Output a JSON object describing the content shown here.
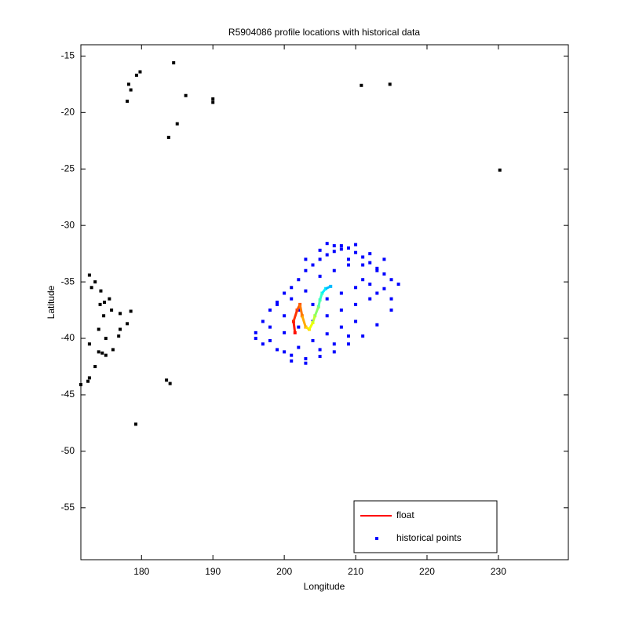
{
  "chart_data": {
    "type": "scatter",
    "title": "R5904086 profile locations with historical data",
    "x_label": "Longitude",
    "y_label": "Latitude",
    "xlim": [
      171.5,
      239.8
    ],
    "ylim": [
      -59.6,
      -14.0
    ],
    "xticks": [
      180,
      190,
      200,
      210,
      220,
      230
    ],
    "yticks": [
      -15,
      -20,
      -25,
      -30,
      -35,
      -40,
      -45,
      -50,
      -55
    ],
    "legend": "lower right",
    "series": [
      {
        "name": "historical points",
        "color": "#0000ff",
        "marker": "dot",
        "x": [
          196,
          197,
          198,
          199,
          200,
          201,
          202,
          203,
          204,
          205,
          206,
          207,
          208,
          209,
          210,
          211,
          212,
          213,
          214,
          215,
          216,
          197,
          199,
          201,
          203,
          205,
          207,
          209,
          211,
          213,
          215,
          196,
          198,
          200,
          202,
          204,
          206,
          208,
          210,
          212,
          214,
          198,
          200,
          202,
          204,
          206,
          208,
          210,
          212,
          200,
          202,
          204,
          206,
          208,
          210,
          201,
          203,
          205,
          207,
          209,
          199,
          201,
          203,
          205,
          207,
          209,
          211,
          213,
          203,
          205,
          207,
          209,
          211,
          213,
          215,
          206,
          208,
          210,
          212,
          214
        ],
        "y": [
          -39.5,
          -38.5,
          -37.5,
          -36.8,
          -36,
          -35.5,
          -34.8,
          -34,
          -33.5,
          -33,
          -32.6,
          -32.3,
          -32.1,
          -32,
          -32.4,
          -32.8,
          -33.3,
          -33.8,
          -34.3,
          -34.8,
          -35.2,
          -40.5,
          -41,
          -41.5,
          -41.8,
          -41.6,
          -41.2,
          -40.5,
          -39.8,
          -38.8,
          -37.5,
          -40,
          -39,
          -38,
          -37.5,
          -37,
          -36.5,
          -36,
          -35.5,
          -35.2,
          -35.6,
          -40.2,
          -39.5,
          -39,
          -38.5,
          -38,
          -37.5,
          -37,
          -36.5,
          -41.2,
          -40.8,
          -40.2,
          -39.6,
          -39,
          -38.5,
          -42,
          -42.2,
          -41,
          -40.5,
          -39.8,
          -37,
          -36.5,
          -35.8,
          -34.5,
          -34,
          -33.5,
          -33.5,
          -34,
          -33,
          -32.2,
          -31.8,
          -33,
          -34.8,
          -36,
          -36.5,
          -31.6,
          -31.8,
          -31.7,
          -32.5,
          -33
        ],
        "value_note": null
      },
      {
        "color": "#000000",
        "marker": "dot",
        "x": [
          172.7,
          173.5,
          174.3,
          174.8,
          175.5,
          175.8,
          177,
          178.5,
          178,
          177,
          176.8,
          176,
          175,
          174.5,
          175,
          174,
          174.7,
          174.2,
          173,
          172.7,
          174,
          173.5,
          172.7,
          172.5,
          171.5,
          178.5,
          178.2,
          179.3,
          179.8,
          178.0,
          184.5,
          186.2,
          185,
          183.8,
          190,
          190,
          210.8,
          214.8,
          230.2,
          183.5,
          184,
          179.2
        ],
        "y": [
          -34.4,
          -35,
          -35.8,
          -36.8,
          -36.5,
          -37.5,
          -37.8,
          -37.6,
          -38.7,
          -39.2,
          -39.8,
          -41,
          -41.5,
          -41.3,
          -40,
          -39.2,
          -38,
          -37,
          -35.5,
          -40.5,
          -41.2,
          -42.5,
          -43.5,
          -43.8,
          -44.1,
          -18,
          -17.5,
          -16.7,
          -16.4,
          -19.0,
          -15.6,
          -18.5,
          -21,
          -22.2,
          -18.8,
          -19.1,
          -17.6,
          -17.5,
          -25.1,
          -43.7,
          -44,
          -47.6
        ]
      },
      {
        "name": "float",
        "color": "#ff0000",
        "marker": "line",
        "x": [
          201.5,
          201.3,
          201.8,
          202.2,
          202.5,
          203,
          203.5,
          204,
          204.3,
          204.8,
          205,
          205.3,
          205.8,
          206.5
        ],
        "y": [
          -39.5,
          -38.5,
          -37.5,
          -37,
          -38,
          -39,
          -39.2,
          -38.6,
          -38,
          -37.2,
          -36.6,
          -36,
          -35.6,
          -35.4
        ],
        "colors": [
          "#ff0000",
          "#ff1a00",
          "#ff3300",
          "#ff5500",
          "#ff7700",
          "#ffaa00",
          "#ffdd00",
          "#eeff00",
          "#bbff33",
          "#88ff66",
          "#55ffaa",
          "#33ffcc",
          "#00eeff",
          "#00bbff"
        ]
      }
    ]
  }
}
